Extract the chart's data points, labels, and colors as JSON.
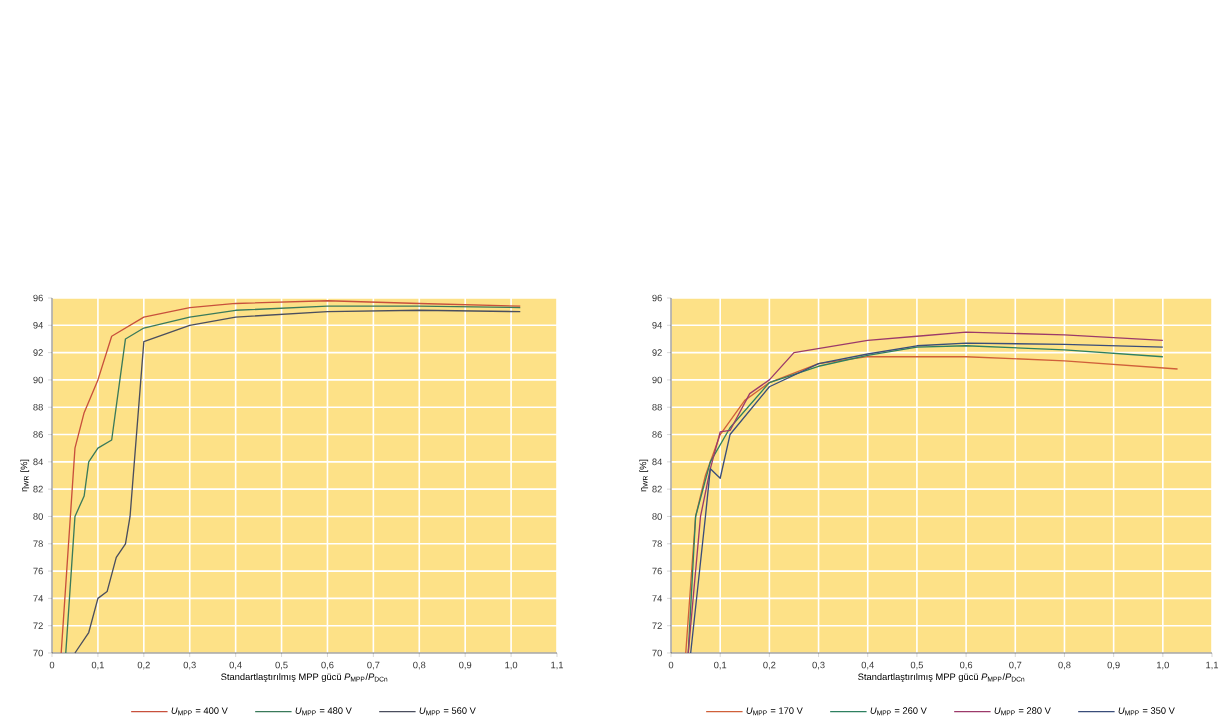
{
  "chart_data": [
    {
      "type": "line",
      "xlabel": "Standartlaştırılmış MPP gücü  *P*$_{MPP}$/*P*$_{DCn}$",
      "ylabel": "η$_{WR}$ [%]",
      "xlim": [
        0,
        1.1
      ],
      "ylim": [
        70,
        96
      ],
      "xticks": [
        0,
        {
          "value": 0.1,
          "label": "0,1"
        },
        {
          "value": 0.2,
          "label": "0,2"
        },
        {
          "value": 0.3,
          "label": "0,3"
        },
        {
          "value": 0.4,
          "label": "0,4"
        },
        {
          "value": 0.5,
          "label": "0,5"
        },
        {
          "value": 0.6,
          "label": "0,6"
        },
        {
          "value": 0.7,
          "label": "0,7"
        },
        {
          "value": 0.8,
          "label": "0,8"
        },
        {
          "value": 0.9,
          "label": "0,9"
        },
        {
          "value": 1.0,
          "label": "1,0"
        },
        {
          "value": 1.1,
          "label": "1,1"
        }
      ],
      "yticks": [
        70,
        72,
        74,
        76,
        78,
        80,
        82,
        84,
        86,
        88,
        90,
        92,
        94,
        96
      ],
      "grid": true,
      "legend": "bottom",
      "series": [
        {
          "name": "*U*$_{MPP}$ = 400 V",
          "color": "#c8503c",
          "x": [
            0.02,
            0.04,
            0.05,
            0.07,
            0.1,
            0.13,
            0.2,
            0.3,
            0.4,
            0.6,
            0.8,
            1.02
          ],
          "values": [
            70,
            80,
            85,
            87.6,
            90,
            93.2,
            94.6,
            95.3,
            95.6,
            95.8,
            95.6,
            95.4
          ]
        },
        {
          "name": "*U*$_{MPP}$ = 480 V",
          "color": "#3a7a5a",
          "x": [
            0.03,
            0.04,
            0.05,
            0.07,
            0.08,
            0.1,
            0.13,
            0.16,
            0.2,
            0.3,
            0.4,
            0.6,
            0.8,
            1.02
          ],
          "values": [
            70,
            75,
            80,
            81.5,
            84,
            85,
            85.6,
            93,
            93.8,
            94.6,
            95.1,
            95.4,
            95.4,
            95.3
          ]
        },
        {
          "name": "*U*$_{MPP}$ = 560 V",
          "color": "#4a4e5e",
          "x": [
            0.05,
            0.08,
            0.1,
            0.12,
            0.14,
            0.16,
            0.17,
            0.2,
            0.3,
            0.4,
            0.6,
            0.8,
            1.02
          ],
          "values": [
            70,
            71.5,
            74,
            74.5,
            77,
            78,
            80,
            92.8,
            94,
            94.6,
            95,
            95.1,
            95
          ]
        }
      ]
    },
    {
      "type": "line",
      "xlabel": "Standartlaştırılmış MPP gücü  *P*$_{MPP}$/*P*$_{DCn}$",
      "ylabel": "η$_{WR}$ [%]",
      "xlim": [
        0,
        1.1
      ],
      "ylim": [
        70,
        96
      ],
      "xticks": [
        0,
        {
          "value": 0.1,
          "label": "0,1"
        },
        {
          "value": 0.2,
          "label": "0,2"
        },
        {
          "value": 0.3,
          "label": "0,3"
        },
        {
          "value": 0.4,
          "label": "0,4"
        },
        {
          "value": 0.5,
          "label": "0,5"
        },
        {
          "value": 0.6,
          "label": "0,6"
        },
        {
          "value": 0.7,
          "label": "0,7"
        },
        {
          "value": 0.8,
          "label": "0,8"
        },
        {
          "value": 0.9,
          "label": "0,9"
        },
        {
          "value": 1.0,
          "label": "1,0"
        },
        {
          "value": 1.1,
          "label": "1,1"
        }
      ],
      "yticks": [
        70,
        72,
        74,
        76,
        78,
        80,
        82,
        84,
        86,
        88,
        90,
        92,
        94,
        96
      ],
      "grid": true,
      "legend": "bottom",
      "series": [
        {
          "name": "*U*$_{MPP}$ = 170 V",
          "color": "#d0603a",
          "x": [
            0.03,
            0.05,
            0.07,
            0.1,
            0.15,
            0.2,
            0.3,
            0.4,
            0.6,
            0.8,
            1.03
          ],
          "values": [
            70,
            80,
            83,
            86,
            88.5,
            89.8,
            91.2,
            91.7,
            91.7,
            91.4,
            90.8
          ]
        },
        {
          "name": "*U*$_{MPP}$ = 260 V",
          "color": "#2e8060",
          "x": [
            0.035,
            0.05,
            0.08,
            0.12,
            0.2,
            0.3,
            0.4,
            0.5,
            0.6,
            0.8,
            1.0
          ],
          "values": [
            70,
            80,
            84,
            86.5,
            89.8,
            91,
            91.8,
            92.4,
            92.5,
            92.2,
            91.7
          ]
        },
        {
          "name": "*U*$_{MPP}$ = 280 V",
          "color": "#9c3a6a",
          "x": [
            0.035,
            0.06,
            0.08,
            0.1,
            0.12,
            0.16,
            0.2,
            0.25,
            0.4,
            0.5,
            0.6,
            0.8,
            1.0
          ],
          "values": [
            70,
            80,
            83.5,
            86.2,
            86.3,
            89,
            90,
            92,
            92.9,
            93.2,
            93.5,
            93.3,
            92.9
          ]
        },
        {
          "name": "*U*$_{MPP}$ = 350 V",
          "color": "#3a4d7a",
          "x": [
            0.04,
            0.07,
            0.08,
            0.1,
            0.12,
            0.2,
            0.3,
            0.4,
            0.5,
            0.6,
            0.8,
            1.0
          ],
          "values": [
            70,
            80,
            83.5,
            82.8,
            86,
            89.5,
            91.2,
            91.9,
            92.5,
            92.7,
            92.6,
            92.4
          ]
        }
      ]
    }
  ]
}
